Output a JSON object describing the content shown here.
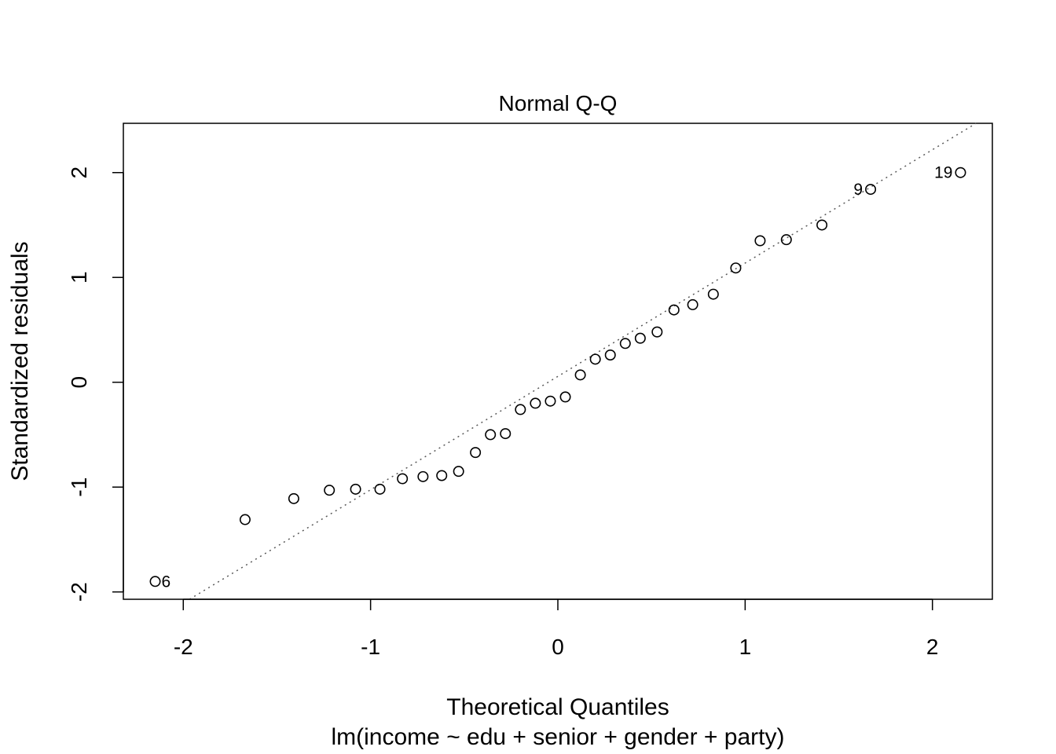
{
  "chart_data": {
    "type": "scatter",
    "title": "Normal Q-Q",
    "xlabel": "Theoretical Quantiles",
    "sublabel": "lm(income ~ edu + senior + gender + party)",
    "ylabel": "Standardized residuals",
    "xlim": [
      -2.32,
      2.32
    ],
    "ylim": [
      -2.07,
      2.47
    ],
    "xticks": [
      -2,
      -1,
      0,
      1,
      2
    ],
    "yticks": [
      -2,
      -1,
      0,
      1,
      2
    ],
    "grid": false,
    "points": [
      {
        "x": -2.15,
        "y": -1.9,
        "label": "6"
      },
      {
        "x": -1.67,
        "y": -1.31
      },
      {
        "x": -1.41,
        "y": -1.11
      },
      {
        "x": -1.22,
        "y": -1.03
      },
      {
        "x": -1.08,
        "y": -1.02
      },
      {
        "x": -0.95,
        "y": -1.02
      },
      {
        "x": -0.83,
        "y": -0.92
      },
      {
        "x": -0.72,
        "y": -0.9
      },
      {
        "x": -0.62,
        "y": -0.89
      },
      {
        "x": -0.53,
        "y": -0.85
      },
      {
        "x": -0.44,
        "y": -0.67
      },
      {
        "x": -0.36,
        "y": -0.5
      },
      {
        "x": -0.28,
        "y": -0.49
      },
      {
        "x": -0.2,
        "y": -0.26
      },
      {
        "x": -0.12,
        "y": -0.2
      },
      {
        "x": -0.04,
        "y": -0.18
      },
      {
        "x": 0.04,
        "y": -0.14
      },
      {
        "x": 0.12,
        "y": 0.07
      },
      {
        "x": 0.2,
        "y": 0.22
      },
      {
        "x": 0.28,
        "y": 0.26
      },
      {
        "x": 0.36,
        "y": 0.37
      },
      {
        "x": 0.44,
        "y": 0.42
      },
      {
        "x": 0.53,
        "y": 0.48
      },
      {
        "x": 0.62,
        "y": 0.69
      },
      {
        "x": 0.72,
        "y": 0.74
      },
      {
        "x": 0.83,
        "y": 0.84
      },
      {
        "x": 0.95,
        "y": 1.09
      },
      {
        "x": 1.08,
        "y": 1.35
      },
      {
        "x": 1.22,
        "y": 1.36
      },
      {
        "x": 1.41,
        "y": 1.5
      },
      {
        "x": 1.67,
        "y": 1.84,
        "label": "9"
      },
      {
        "x": 2.15,
        "y": 2.0,
        "label": "19"
      }
    ],
    "reference_line": {
      "intercept": 0.056,
      "slope": 1.081,
      "style": "dotted",
      "color": "#555555"
    }
  }
}
